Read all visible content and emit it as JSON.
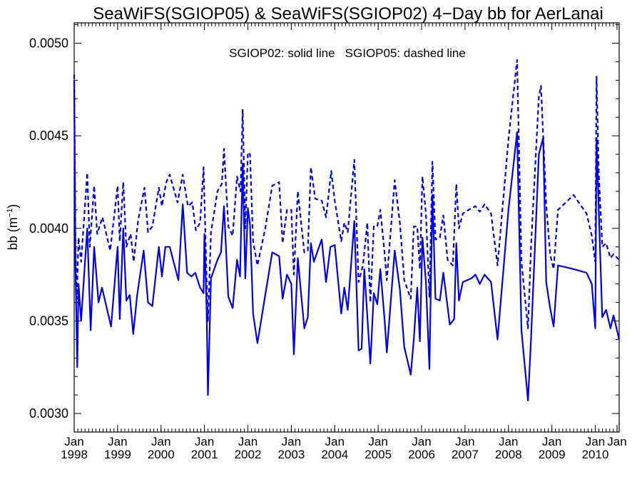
{
  "chart_data": {
    "type": "line",
    "title": "SeaWiFS(SGIOP05) & SeaWiFS(SGIOP02) 4−Day bb for AerLanai",
    "annotation": "SGIOP02: solid line   SGIOP05: dashed line",
    "ylabel_main": "bb (m",
    "ylabel_exp": "−1",
    "ylabel_close": ")",
    "xlim": [
      1998.0,
      2010.55
    ],
    "ylim": [
      0.0029,
      0.00511
    ],
    "yticks": [
      {
        "value": 0.003,
        "label": "0.0030"
      },
      {
        "value": 0.0035,
        "label": "0.0035"
      },
      {
        "value": 0.004,
        "label": "0.0040"
      },
      {
        "value": 0.0045,
        "label": "0.0045"
      },
      {
        "value": 0.005,
        "label": "0.0050"
      }
    ],
    "xticks": [
      {
        "value": 1998,
        "month": "Jan",
        "year": "1998"
      },
      {
        "value": 1999,
        "month": "Jan",
        "year": "1999"
      },
      {
        "value": 2000,
        "month": "Jan",
        "year": "2000"
      },
      {
        "value": 2001,
        "month": "Jan",
        "year": "2001"
      },
      {
        "value": 2002,
        "month": "Jan",
        "year": "2002"
      },
      {
        "value": 2003,
        "month": "Jan",
        "year": "2003"
      },
      {
        "value": 2004,
        "month": "Jan",
        "year": "2004"
      },
      {
        "value": 2005,
        "month": "Jan",
        "year": "2005"
      },
      {
        "value": 2006,
        "month": "Jan",
        "year": "2006"
      },
      {
        "value": 2007,
        "month": "Jan",
        "year": "2007"
      },
      {
        "value": 2008,
        "month": "Jan",
        "year": "2008"
      },
      {
        "value": 2009,
        "month": "Jan",
        "year": "2009"
      },
      {
        "value": 2010,
        "month": "Jan",
        "year": "2010"
      },
      {
        "value": 2010.5,
        "month": "Jan",
        "year": ""
      }
    ],
    "line_color": "#0000ee",
    "series": [
      {
        "name": "SGIOP02",
        "style": "solid",
        "points": [
          [
            1998.0,
            0.0048
          ],
          [
            1998.03,
            0.0038
          ],
          [
            1998.07,
            0.00325
          ],
          [
            1998.1,
            0.0037
          ],
          [
            1998.16,
            0.0035
          ],
          [
            1998.3,
            0.004
          ],
          [
            1998.38,
            0.00345
          ],
          [
            1998.46,
            0.0039
          ],
          [
            1998.56,
            0.0036
          ],
          [
            1998.64,
            0.00368
          ],
          [
            1998.85,
            0.00347
          ],
          [
            1999.0,
            0.0039
          ],
          [
            1999.05,
            0.00351
          ],
          [
            1999.13,
            0.004
          ],
          [
            1999.2,
            0.00361
          ],
          [
            1999.28,
            0.00364
          ],
          [
            1999.36,
            0.00343
          ],
          [
            1999.45,
            0.00364
          ],
          [
            1999.6,
            0.00388
          ],
          [
            1999.7,
            0.0036
          ],
          [
            1999.8,
            0.00358
          ],
          [
            1999.95,
            0.0039
          ],
          [
            2000.02,
            0.00374
          ],
          [
            2000.1,
            0.0039
          ],
          [
            2000.2,
            0.0039
          ],
          [
            2000.4,
            0.00372
          ],
          [
            2000.5,
            0.00413
          ],
          [
            2000.6,
            0.00376
          ],
          [
            2000.7,
            0.00374
          ],
          [
            2000.79,
            0.00376
          ],
          [
            2000.9,
            0.00368
          ],
          [
            2000.98,
            0.00365
          ],
          [
            2001.0,
            0.00397
          ],
          [
            2001.05,
            0.00355
          ],
          [
            2001.08,
            0.0031
          ],
          [
            2001.15,
            0.00373
          ],
          [
            2001.3,
            0.00383
          ],
          [
            2001.38,
            0.00387
          ],
          [
            2001.45,
            0.00412
          ],
          [
            2001.55,
            0.00363
          ],
          [
            2001.65,
            0.00357
          ],
          [
            2001.75,
            0.00383
          ],
          [
            2001.82,
            0.00374
          ],
          [
            2001.88,
            0.00435
          ],
          [
            2001.94,
            0.00373
          ],
          [
            2002.0,
            0.00411
          ],
          [
            2002.05,
            0.00402
          ],
          [
            2002.12,
            0.00354
          ],
          [
            2002.22,
            0.00338
          ],
          [
            2002.4,
            0.00364
          ],
          [
            2002.56,
            0.00387
          ],
          [
            2002.72,
            0.00385
          ],
          [
            2002.8,
            0.00362
          ],
          [
            2002.9,
            0.00375
          ],
          [
            2003.0,
            0.0037
          ],
          [
            2003.06,
            0.00332
          ],
          [
            2003.15,
            0.00384
          ],
          [
            2003.3,
            0.00346
          ],
          [
            2003.38,
            0.00352
          ],
          [
            2003.45,
            0.00392
          ],
          [
            2003.52,
            0.00382
          ],
          [
            2003.7,
            0.00394
          ],
          [
            2003.8,
            0.00371
          ],
          [
            2003.9,
            0.0039
          ],
          [
            2004.0,
            0.00391
          ],
          [
            2004.15,
            0.00354
          ],
          [
            2004.22,
            0.00368
          ],
          [
            2004.3,
            0.00356
          ],
          [
            2004.45,
            0.00404
          ],
          [
            2004.55,
            0.00334
          ],
          [
            2004.62,
            0.00335
          ],
          [
            2004.68,
            0.00378
          ],
          [
            2004.82,
            0.00327
          ],
          [
            2004.9,
            0.00365
          ],
          [
            2004.98,
            0.00359
          ],
          [
            2005.05,
            0.00378
          ],
          [
            2005.15,
            0.0035
          ],
          [
            2005.2,
            0.00333
          ],
          [
            2005.38,
            0.00388
          ],
          [
            2005.5,
            0.00367
          ],
          [
            2005.6,
            0.00336
          ],
          [
            2005.75,
            0.00321
          ],
          [
            2005.82,
            0.0034
          ],
          [
            2005.9,
            0.00368
          ],
          [
            2005.96,
            0.00339
          ],
          [
            2006.02,
            0.00395
          ],
          [
            2006.1,
            0.00371
          ],
          [
            2006.18,
            0.00324
          ],
          [
            2006.25,
            0.00418
          ],
          [
            2006.32,
            0.00362
          ],
          [
            2006.42,
            0.00361
          ],
          [
            2006.5,
            0.00376
          ],
          [
            2006.65,
            0.00348
          ],
          [
            2006.75,
            0.00351
          ],
          [
            2006.8,
            0.00392
          ],
          [
            2006.86,
            0.00361
          ],
          [
            2006.95,
            0.00371
          ],
          [
            2007.15,
            0.00373
          ],
          [
            2007.24,
            0.00375
          ],
          [
            2007.34,
            0.0037
          ],
          [
            2007.45,
            0.00375
          ],
          [
            2007.6,
            0.00371
          ],
          [
            2007.75,
            0.0034
          ],
          [
            2008.0,
            0.0041
          ],
          [
            2008.2,
            0.00452
          ],
          [
            2008.3,
            0.00345
          ],
          [
            2008.45,
            0.00307
          ],
          [
            2008.52,
            0.0034
          ],
          [
            2008.7,
            0.0044
          ],
          [
            2008.8,
            0.00449
          ],
          [
            2008.87,
            0.00371
          ],
          [
            2008.96,
            0.00357
          ],
          [
            2009.04,
            0.00347
          ],
          [
            2009.14,
            0.0038
          ],
          [
            2009.5,
            0.00378
          ],
          [
            2009.8,
            0.00376
          ],
          [
            2009.92,
            0.0037
          ],
          [
            2010.0,
            0.00346
          ],
          [
            2010.03,
            0.00449
          ],
          [
            2010.08,
            0.0041
          ],
          [
            2010.16,
            0.00352
          ],
          [
            2010.25,
            0.00356
          ],
          [
            2010.35,
            0.00346
          ],
          [
            2010.42,
            0.00353
          ],
          [
            2010.55,
            0.0034
          ]
        ]
      },
      {
        "name": "SGIOP05",
        "style": "dashed",
        "points": [
          [
            1998.0,
            0.00483
          ],
          [
            1998.03,
            0.0039
          ],
          [
            1998.06,
            0.00362
          ],
          [
            1998.1,
            0.00395
          ],
          [
            1998.16,
            0.00382
          ],
          [
            1998.3,
            0.0043
          ],
          [
            1998.36,
            0.0039
          ],
          [
            1998.46,
            0.00423
          ],
          [
            1998.53,
            0.00397
          ],
          [
            1998.65,
            0.00406
          ],
          [
            1998.83,
            0.00388
          ],
          [
            1999.0,
            0.00423
          ],
          [
            1999.05,
            0.00393
          ],
          [
            1999.13,
            0.00425
          ],
          [
            1999.2,
            0.0039
          ],
          [
            1999.3,
            0.00397
          ],
          [
            1999.37,
            0.00382
          ],
          [
            1999.47,
            0.00404
          ],
          [
            1999.62,
            0.00422
          ],
          [
            1999.7,
            0.00398
          ],
          [
            1999.8,
            0.00401
          ],
          [
            1999.95,
            0.00422
          ],
          [
            2000.02,
            0.00412
          ],
          [
            2000.12,
            0.00425
          ],
          [
            2000.2,
            0.00429
          ],
          [
            2000.38,
            0.00414
          ],
          [
            2000.5,
            0.00429
          ],
          [
            2000.62,
            0.00412
          ],
          [
            2000.72,
            0.00414
          ],
          [
            2000.8,
            0.00399
          ],
          [
            2000.9,
            0.00403
          ],
          [
            2000.98,
            0.00433
          ],
          [
            2001.05,
            0.00372
          ],
          [
            2001.08,
            0.0035
          ],
          [
            2001.15,
            0.00398
          ],
          [
            2001.3,
            0.0042
          ],
          [
            2001.4,
            0.00424
          ],
          [
            2001.45,
            0.00443
          ],
          [
            2001.55,
            0.00401
          ],
          [
            2001.65,
            0.00396
          ],
          [
            2001.75,
            0.00428
          ],
          [
            2001.83,
            0.0042
          ],
          [
            2001.88,
            0.00464
          ],
          [
            2001.94,
            0.004
          ],
          [
            2002.0,
            0.00441
          ],
          [
            2002.05,
            0.0044
          ],
          [
            2002.12,
            0.00393
          ],
          [
            2002.22,
            0.0038
          ],
          [
            2002.4,
            0.004
          ],
          [
            2002.56,
            0.00423
          ],
          [
            2002.72,
            0.00425
          ],
          [
            2002.8,
            0.00392
          ],
          [
            2002.9,
            0.0041
          ],
          [
            2003.0,
            0.0041
          ],
          [
            2003.06,
            0.00375
          ],
          [
            2003.15,
            0.0042
          ],
          [
            2003.3,
            0.00387
          ],
          [
            2003.38,
            0.00388
          ],
          [
            2003.45,
            0.00433
          ],
          [
            2003.55,
            0.00416
          ],
          [
            2003.7,
            0.00415
          ],
          [
            2003.8,
            0.00406
          ],
          [
            2003.92,
            0.00431
          ],
          [
            2004.0,
            0.00415
          ],
          [
            2004.15,
            0.00393
          ],
          [
            2004.22,
            0.00403
          ],
          [
            2004.3,
            0.00398
          ],
          [
            2004.45,
            0.00437
          ],
          [
            2004.55,
            0.00371
          ],
          [
            2004.65,
            0.0038
          ],
          [
            2004.75,
            0.00403
          ],
          [
            2004.82,
            0.0036
          ],
          [
            2004.9,
            0.00401
          ],
          [
            2004.98,
            0.00401
          ],
          [
            2005.05,
            0.0041
          ],
          [
            2005.15,
            0.00386
          ],
          [
            2005.2,
            0.00372
          ],
          [
            2005.38,
            0.00426
          ],
          [
            2005.5,
            0.00403
          ],
          [
            2005.6,
            0.00372
          ],
          [
            2005.75,
            0.00362
          ],
          [
            2005.82,
            0.00401
          ],
          [
            2005.9,
            0.00401
          ],
          [
            2005.96,
            0.00378
          ],
          [
            2006.02,
            0.00428
          ],
          [
            2006.1,
            0.00408
          ],
          [
            2006.18,
            0.00363
          ],
          [
            2006.25,
            0.00436
          ],
          [
            2006.32,
            0.00394
          ],
          [
            2006.42,
            0.00395
          ],
          [
            2006.5,
            0.00407
          ],
          [
            2006.6,
            0.00383
          ],
          [
            2006.72,
            0.0038
          ],
          [
            2006.8,
            0.00424
          ],
          [
            2006.86,
            0.004
          ],
          [
            2006.95,
            0.00408
          ],
          [
            2007.15,
            0.00411
          ],
          [
            2007.24,
            0.00412
          ],
          [
            2007.34,
            0.00409
          ],
          [
            2007.45,
            0.00413
          ],
          [
            2007.6,
            0.00408
          ],
          [
            2007.75,
            0.0038
          ],
          [
            2008.0,
            0.00448
          ],
          [
            2008.2,
            0.00491
          ],
          [
            2008.3,
            0.00382
          ],
          [
            2008.45,
            0.00346
          ],
          [
            2008.52,
            0.0039
          ],
          [
            2008.7,
            0.00471
          ],
          [
            2008.75,
            0.00477
          ],
          [
            2008.87,
            0.00413
          ],
          [
            2008.96,
            0.00386
          ],
          [
            2009.04,
            0.00378
          ],
          [
            2009.14,
            0.0041
          ],
          [
            2009.5,
            0.00418
          ],
          [
            2009.8,
            0.00408
          ],
          [
            2009.92,
            0.00396
          ],
          [
            2010.0,
            0.00382
          ],
          [
            2010.03,
            0.00482
          ],
          [
            2010.08,
            0.0043
          ],
          [
            2010.16,
            0.0039
          ],
          [
            2010.25,
            0.00392
          ],
          [
            2010.35,
            0.00384
          ],
          [
            2010.42,
            0.00386
          ],
          [
            2010.55,
            0.00383
          ]
        ]
      }
    ]
  }
}
